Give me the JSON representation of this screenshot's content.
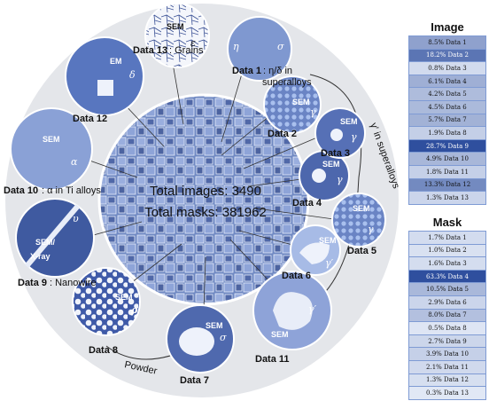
{
  "center": {
    "total_images": "Total images: 3490",
    "total_masks": "Total masks: 381962"
  },
  "labels": {
    "data1": "Data 1",
    "data1_note": ": η/δ in",
    "data1_note2": "superalloys",
    "data2": "Data 2",
    "data3": "Data 3",
    "data4": "Data 4",
    "data5": "Data 5",
    "data6": "Data 6",
    "data7": "Data 7",
    "data8": "Data 8",
    "data9": "Data 9",
    "data9_note": ":  Nanowire",
    "data10": "Data 10",
    "data10_note": ": α in Ti alloys",
    "data11": "Data 11",
    "data12": "Data 12",
    "data13": "Data 13",
    "data13_note": ": Grains",
    "gamma_prime_group": "γ′ in superalloys",
    "powder_group": "Powder"
  },
  "insets": {
    "sem": "SEM",
    "em": "EM",
    "semxray": "SEM/",
    "xray": "X-ray",
    "eta": "η",
    "sigma": "σ",
    "epsilon": "ε",
    "delta": "δ",
    "alpha": "α",
    "upsilon": "υ",
    "rho": "ρ",
    "omicron": "σ",
    "gamma": "γ",
    "gammap": "γ′"
  },
  "image_panel": {
    "title": "Image",
    "rows": [
      {
        "label": "8.5% Data 1",
        "value": 8.5
      },
      {
        "label": "18.2% Data 2",
        "value": 18.2
      },
      {
        "label": "0.8% Data 3",
        "value": 0.8
      },
      {
        "label": "6.1% Data 4",
        "value": 6.1
      },
      {
        "label": "4.2% Data 5",
        "value": 4.2
      },
      {
        "label": "4.5% Data 6",
        "value": 4.5
      },
      {
        "label": "5.7% Data 7",
        "value": 5.7
      },
      {
        "label": "1.9% Data 8",
        "value": 1.9
      },
      {
        "label": "28.7% Data 9",
        "value": 28.7
      },
      {
        "label": "4.9% Data 10",
        "value": 4.9
      },
      {
        "label": "1.8% Data 11",
        "value": 1.8
      },
      {
        "label": "13.3% Data 12",
        "value": 13.3
      },
      {
        "label": "1.3% Data 13",
        "value": 1.3
      }
    ]
  },
  "mask_panel": {
    "title": "Mask",
    "rows": [
      {
        "label": "1.7% Data 1",
        "value": 1.7
      },
      {
        "label": "1.0% Data 2",
        "value": 1.0
      },
      {
        "label": "1.6% Data 3",
        "value": 1.6
      },
      {
        "label": "63.3% Data 4",
        "value": 63.3
      },
      {
        "label": "10.5% Data 5",
        "value": 10.5
      },
      {
        "label": "2.9% Data 6",
        "value": 2.9
      },
      {
        "label": "8.0% Data 7",
        "value": 8.0
      },
      {
        "label": "0.5% Data 8",
        "value": 0.5
      },
      {
        "label": "2.7% Data 9",
        "value": 2.7
      },
      {
        "label": "3.9% Data 10",
        "value": 3.9
      },
      {
        "label": "2.1% Data 11",
        "value": 2.1
      },
      {
        "label": "1.3% Data 12",
        "value": 1.3
      },
      {
        "label": "0.3% Data 13",
        "value": 0.3
      }
    ]
  },
  "colors": {
    "ring": "#e4e6ea",
    "mosaic": "#6f88c2",
    "inset_fill": "#7d95cc",
    "heat_low": "#e8eef9",
    "heat_high": "#2f4f9e"
  }
}
